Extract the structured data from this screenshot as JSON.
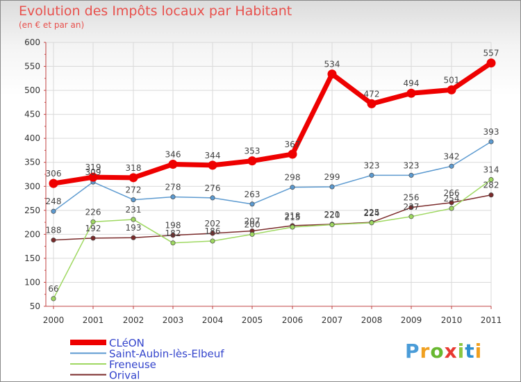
{
  "title": "Evolution des Impôts locaux par Habitant",
  "subtitle": "(en € et par an)",
  "logo": "Proxiti",
  "chart_data": {
    "type": "line",
    "title": "Evolution des Impôts locaux par Habitant",
    "subtitle": "(en € et par an)",
    "xlabel": "",
    "ylabel": "",
    "ylim": [
      50,
      600
    ],
    "yticks": [
      50,
      100,
      150,
      200,
      250,
      300,
      350,
      400,
      450,
      500,
      550,
      600
    ],
    "grid": true,
    "legend_position": "bottom-left",
    "categories": [
      "2000",
      "2001",
      "2002",
      "2003",
      "2004",
      "2005",
      "2006",
      "2007",
      "2008",
      "2009",
      "2010",
      "2011"
    ],
    "series": [
      {
        "name": "CLéON",
        "color": "#ee0000",
        "values": [
          306,
          319,
          318,
          346,
          344,
          353,
          367,
          534,
          472,
          494,
          501,
          557
        ],
        "labels": [
          "306",
          "319",
          "318",
          "346",
          "344",
          "353",
          "367",
          "534",
          "472",
          "494",
          "501",
          "557"
        ]
      },
      {
        "name": "Saint-Aubin-lès-Elbeuf",
        "color": "#5c9ad0",
        "values": [
          248,
          309,
          272,
          278,
          276,
          263,
          298,
          299,
          323,
          323,
          342,
          393
        ],
        "labels": [
          "248",
          "309",
          "272",
          "278",
          "276",
          "263",
          "298",
          "299",
          "323",
          "323",
          "342",
          "393"
        ]
      },
      {
        "name": "Freneuse",
        "color": "#9ed860",
        "values": [
          66,
          226,
          231,
          182,
          186,
          200,
          215,
          220,
          224,
          237,
          254,
          314
        ],
        "labels": [
          "66",
          "226",
          "231",
          "182",
          "186",
          "200",
          "215",
          "220",
          "224",
          "237",
          "254",
          "314"
        ]
      },
      {
        "name": "Orival",
        "color": "#7a2a2a",
        "values": [
          188,
          192,
          193,
          198,
          202,
          207,
          218,
          221,
          225,
          256,
          266,
          282
        ],
        "labels": [
          "188",
          "192",
          "193",
          "198",
          "202",
          "207",
          "218",
          "221",
          "225",
          "256",
          "266",
          "282"
        ]
      }
    ]
  }
}
